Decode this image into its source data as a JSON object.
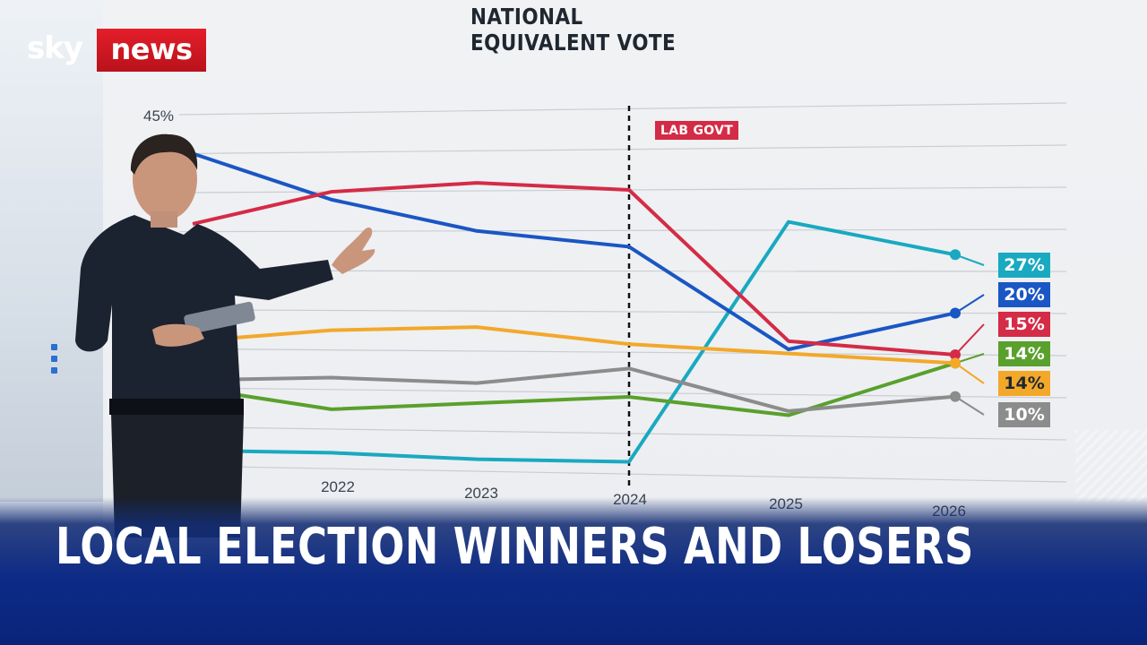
{
  "channel": {
    "logo_left": "sky",
    "logo_right": "news"
  },
  "headline": "LOCAL ELECTION WINNERS AND LOSERS",
  "colors": {
    "reform": "#19a9c0",
    "labour": "#d42b46",
    "conservative": "#1a56c4",
    "green": "#5aa02c",
    "libdem": "#f3a82a",
    "other": "#8c8c8c"
  },
  "chart_data": {
    "type": "line",
    "title": "NATIONAL EQUIVALENT VOTE",
    "annotation": "LAB GOVT",
    "x": [
      2021,
      2022,
      2023,
      2024,
      2025,
      2026
    ],
    "x_ticks": [
      "2022",
      "2023",
      "2024",
      "2025",
      "2026"
    ],
    "y_tick_label": "45%",
    "ylim": [
      0,
      45
    ],
    "vertical_marker_x": 2024,
    "series": [
      {
        "color": "#19a9c0",
        "values": [
          2,
          2,
          1.5,
          1.5,
          31,
          27
        ],
        "end_label": "27%"
      },
      {
        "color": "#1a56c4",
        "values": [
          40,
          34,
          30,
          28,
          15.5,
          20
        ],
        "end_label": "20%"
      },
      {
        "color": "#d42b46",
        "values": [
          31,
          35,
          36,
          35,
          16.5,
          15
        ],
        "end_label": "15%"
      },
      {
        "color": "#5aa02c",
        "values": [
          10,
          7.5,
          8.5,
          9.5,
          7.5,
          14
        ],
        "end_label": "14%"
      },
      {
        "color": "#f3a82a",
        "values": [
          16,
          17.5,
          18,
          16,
          15,
          14
        ],
        "end_label": "14%"
      },
      {
        "color": "#8c8c8c",
        "values": [
          11,
          11.5,
          11,
          13,
          8,
          10
        ],
        "end_label": "10%"
      }
    ]
  }
}
